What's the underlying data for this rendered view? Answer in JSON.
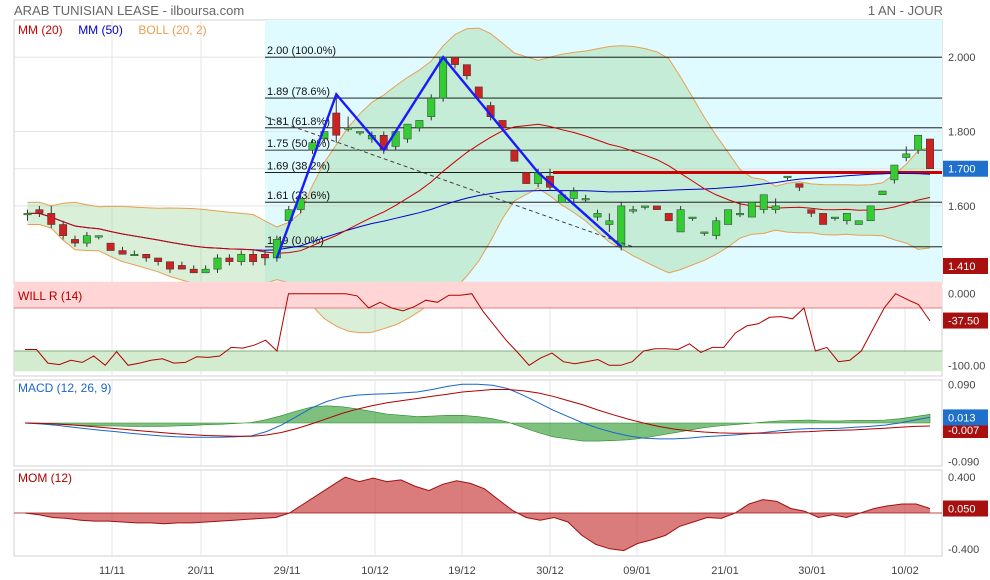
{
  "header": {
    "title": "ARAB TUNISIAN LEASE - ilboursa.com",
    "period": "1 AN - JOUR"
  },
  "colors": {
    "mm20": "#cc0000",
    "mm50": "#0000cc",
    "boll": "#e8a050",
    "up": "#33cc33",
    "down": "#cc2222",
    "fib": "#000000",
    "trend": "#1a1aff",
    "resistance": "#cc0000"
  },
  "chart_data": [
    {
      "type": "candlestick",
      "panel": "price",
      "legend": [
        {
          "label": "MM (20)",
          "color": "#cc0000"
        },
        {
          "label": "MM (50)",
          "color": "#0000cc"
        },
        {
          "label": "BOLL (20, 2)",
          "color": "#e8a050"
        }
      ],
      "y_ticks": [
        1.6,
        1.7,
        1.8,
        2.0
      ],
      "y_tick_labels": [
        "1.600",
        "1.700",
        "1.800",
        "2.000"
      ],
      "ylim": [
        1.39,
        2.1
      ],
      "last_price_label": "1.700",
      "low_label": "1.410",
      "x_ticks": [
        "11/11",
        "20/11",
        "29/11",
        "10/12",
        "19/12",
        "30/12",
        "09/01",
        "21/01",
        "30/01",
        "10/02"
      ],
      "fibonacci": [
        {
          "label": "2.00  (100.0%)",
          "value": 2.0
        },
        {
          "label": "1.89  (78.6%)",
          "value": 1.89
        },
        {
          "label": "1.81  (61.8%)",
          "value": 1.81
        },
        {
          "label": "1.75  (50.0%)",
          "value": 1.75
        },
        {
          "label": "1.69  (38.2%)",
          "value": 1.69
        },
        {
          "label": "1.61  (23.6%)",
          "value": 1.61
        },
        {
          "label": "1.49  (0.0%)",
          "value": 1.49
        }
      ],
      "resistance": 1.69,
      "candles": [
        [
          1.58,
          1.59,
          1.56,
          1.58
        ],
        [
          1.59,
          1.6,
          1.57,
          1.58
        ],
        [
          1.58,
          1.6,
          1.54,
          1.55
        ],
        [
          1.55,
          1.56,
          1.51,
          1.52
        ],
        [
          1.51,
          1.52,
          1.49,
          1.5
        ],
        [
          1.5,
          1.53,
          1.49,
          1.52
        ],
        [
          1.52,
          1.52,
          1.51,
          1.52
        ],
        [
          1.5,
          1.5,
          1.48,
          1.48
        ],
        [
          1.48,
          1.49,
          1.47,
          1.47
        ],
        [
          1.47,
          1.48,
          1.47,
          1.47
        ],
        [
          1.47,
          1.47,
          1.45,
          1.46
        ],
        [
          1.46,
          1.46,
          1.44,
          1.45
        ],
        [
          1.45,
          1.45,
          1.42,
          1.43
        ],
        [
          1.44,
          1.45,
          1.43,
          1.43
        ],
        [
          1.43,
          1.44,
          1.42,
          1.42
        ],
        [
          1.42,
          1.44,
          1.42,
          1.43
        ],
        [
          1.43,
          1.47,
          1.42,
          1.46
        ],
        [
          1.46,
          1.47,
          1.44,
          1.45
        ],
        [
          1.45,
          1.48,
          1.44,
          1.47
        ],
        [
          1.47,
          1.48,
          1.44,
          1.45
        ],
        [
          1.47,
          1.48,
          1.44,
          1.46
        ],
        [
          1.46,
          1.52,
          1.45,
          1.51
        ],
        [
          1.56,
          1.6,
          1.55,
          1.59
        ],
        [
          1.59,
          1.63,
          1.58,
          1.62
        ],
        [
          1.75,
          1.78,
          1.74,
          1.77
        ],
        [
          1.78,
          1.8,
          1.77,
          1.8
        ],
        [
          1.85,
          1.9,
          1.77,
          1.79
        ],
        [
          1.81,
          1.84,
          1.8,
          1.81
        ],
        [
          1.8,
          1.8,
          1.79,
          1.8
        ],
        [
          1.78,
          1.8,
          1.77,
          1.79
        ],
        [
          1.79,
          1.8,
          1.74,
          1.75
        ],
        [
          1.76,
          1.8,
          1.75,
          1.8
        ],
        [
          1.78,
          1.82,
          1.77,
          1.82
        ],
        [
          1.81,
          1.83,
          1.8,
          1.83
        ],
        [
          1.84,
          1.9,
          1.83,
          1.89
        ],
        [
          1.89,
          2.0,
          1.88,
          2.0
        ],
        [
          2.0,
          2.0,
          1.97,
          1.98
        ],
        [
          1.98,
          1.98,
          1.94,
          1.95
        ],
        [
          1.92,
          1.92,
          1.89,
          1.89
        ],
        [
          1.87,
          1.88,
          1.83,
          1.84
        ],
        [
          1.83,
          1.83,
          1.8,
          1.81
        ],
        [
          1.75,
          1.75,
          1.72,
          1.72
        ],
        [
          1.69,
          1.69,
          1.66,
          1.66
        ],
        [
          1.66,
          1.7,
          1.65,
          1.69
        ],
        [
          1.68,
          1.7,
          1.64,
          1.65
        ],
        [
          1.61,
          1.64,
          1.61,
          1.63
        ],
        [
          1.62,
          1.65,
          1.61,
          1.64
        ],
        [
          1.62,
          1.63,
          1.61,
          1.62
        ],
        [
          1.57,
          1.59,
          1.56,
          1.58
        ],
        [
          1.55,
          1.58,
          1.53,
          1.56
        ],
        [
          1.49,
          1.61,
          1.48,
          1.6
        ],
        [
          1.59,
          1.6,
          1.58,
          1.59
        ],
        [
          1.6,
          1.6,
          1.59,
          1.6
        ],
        [
          1.6,
          1.6,
          1.59,
          1.59
        ],
        [
          1.58,
          1.58,
          1.56,
          1.56
        ],
        [
          1.53,
          1.6,
          1.53,
          1.59
        ],
        [
          1.57,
          1.57,
          1.56,
          1.57
        ],
        [
          1.53,
          1.53,
          1.52,
          1.53
        ],
        [
          1.52,
          1.57,
          1.51,
          1.56
        ],
        [
          1.55,
          1.59,
          1.55,
          1.59
        ],
        [
          1.58,
          1.61,
          1.57,
          1.58
        ],
        [
          1.57,
          1.61,
          1.57,
          1.61
        ],
        [
          1.59,
          1.63,
          1.58,
          1.63
        ],
        [
          1.59,
          1.62,
          1.58,
          1.6
        ],
        [
          1.68,
          1.68,
          1.67,
          1.68
        ],
        [
          1.66,
          1.66,
          1.64,
          1.65
        ],
        [
          1.59,
          1.59,
          1.57,
          1.58
        ],
        [
          1.58,
          1.58,
          1.55,
          1.55
        ],
        [
          1.57,
          1.57,
          1.56,
          1.57
        ],
        [
          1.56,
          1.58,
          1.55,
          1.58
        ],
        [
          1.55,
          1.56,
          1.55,
          1.56
        ],
        [
          1.56,
          1.6,
          1.56,
          1.6
        ],
        [
          1.63,
          1.64,
          1.63,
          1.64
        ],
        [
          1.67,
          1.71,
          1.66,
          1.71
        ],
        [
          1.73,
          1.76,
          1.72,
          1.74
        ],
        [
          1.75,
          1.79,
          1.74,
          1.79
        ],
        [
          1.78,
          1.78,
          1.7,
          1.7
        ]
      ]
    },
    {
      "type": "line",
      "panel": "williams",
      "legend": [
        {
          "label": "WILL R (14)",
          "color": "#cc0000"
        }
      ],
      "y_tick_labels": [
        "0.000",
        "-100.00"
      ],
      "ylim": [
        -100,
        0
      ],
      "last_label": "-37.50",
      "values": [
        -78,
        -78,
        -97,
        -99,
        -93,
        -96,
        -87,
        -100,
        -81,
        -100,
        -97,
        -93,
        -91,
        -97,
        -96,
        -88,
        -89,
        -87,
        -75,
        -76,
        -72,
        -65,
        -80,
        0,
        0,
        0,
        0,
        0,
        0,
        -3,
        -20,
        -12,
        -20,
        -24,
        -18,
        -9,
        -12,
        -2,
        -2,
        0,
        -25,
        -45,
        -65,
        -82,
        -100,
        -90,
        -83,
        -95,
        -98,
        -95,
        -92,
        -100,
        -100,
        -95,
        -80,
        -77,
        -77,
        -78,
        -70,
        -82,
        -75,
        -75,
        -55,
        -45,
        -42,
        -33,
        -32,
        -35,
        -20,
        -80,
        -75,
        -95,
        -93,
        -80,
        -50,
        -20,
        0,
        -8,
        -15,
        -38
      ]
    },
    {
      "type": "line",
      "panel": "macd",
      "legend": [
        {
          "label": "MACD (12, 26, 9)",
          "color": "#1a66cc"
        }
      ],
      "y_tick_labels": [
        "0.090",
        "-0.090"
      ],
      "ylim": [
        -0.09,
        0.09
      ],
      "last_label": "0.013",
      "signal_label": "-0.007",
      "macd": [
        -0.0,
        -0.002,
        -0.005,
        -0.009,
        -0.013,
        -0.017,
        -0.02,
        -0.024,
        -0.027,
        -0.03,
        -0.032,
        -0.033,
        -0.033,
        -0.033,
        -0.032,
        -0.03,
        -0.02,
        -0.005,
        0.015,
        0.035,
        0.05,
        0.06,
        0.065,
        0.067,
        0.068,
        0.07,
        0.072,
        0.078,
        0.085,
        0.09,
        0.09,
        0.088,
        0.08,
        0.065,
        0.048,
        0.03,
        0.015,
        0.0,
        -0.012,
        -0.022,
        -0.03,
        -0.035,
        -0.037,
        -0.037,
        -0.035,
        -0.032,
        -0.03,
        -0.028,
        -0.025,
        -0.022,
        -0.018,
        -0.015,
        -0.013,
        -0.013,
        -0.012,
        -0.01,
        -0.008,
        -0.005,
        0.0,
        0.007,
        0.013
      ],
      "signal": [
        0.0,
        -0.001,
        -0.002,
        -0.004,
        -0.007,
        -0.01,
        -0.013,
        -0.016,
        -0.019,
        -0.022,
        -0.025,
        -0.027,
        -0.029,
        -0.03,
        -0.031,
        -0.031,
        -0.028,
        -0.022,
        -0.013,
        -0.002,
        0.01,
        0.022,
        0.032,
        0.04,
        0.047,
        0.052,
        0.057,
        0.062,
        0.067,
        0.072,
        0.075,
        0.078,
        0.078,
        0.075,
        0.07,
        0.062,
        0.052,
        0.042,
        0.03,
        0.019,
        0.009,
        0.0,
        -0.008,
        -0.014,
        -0.018,
        -0.021,
        -0.023,
        -0.024,
        -0.024,
        -0.024,
        -0.023,
        -0.021,
        -0.02,
        -0.018,
        -0.017,
        -0.016,
        -0.014,
        -0.012,
        -0.01,
        -0.008,
        -0.007
      ]
    },
    {
      "type": "area",
      "panel": "momentum",
      "legend": [
        {
          "label": "MOM (12)",
          "color": "#cc3333"
        }
      ],
      "y_tick_labels": [
        "0.400",
        "-0.400"
      ],
      "ylim": [
        -0.4,
        0.4
      ],
      "last_label": "0.050",
      "values": [
        0.0,
        -0.02,
        -0.05,
        -0.06,
        -0.08,
        -0.09,
        -0.09,
        -0.1,
        -0.11,
        -0.11,
        -0.12,
        -0.11,
        -0.11,
        -0.1,
        -0.09,
        -0.08,
        -0.07,
        -0.06,
        -0.05,
        0.0,
        0.1,
        0.2,
        0.3,
        0.4,
        0.35,
        0.39,
        0.35,
        0.37,
        0.3,
        0.25,
        0.32,
        0.36,
        0.33,
        0.27,
        0.15,
        0.03,
        -0.05,
        -0.08,
        -0.05,
        -0.1,
        -0.25,
        -0.35,
        -0.4,
        -0.42,
        -0.34,
        -0.3,
        -0.25,
        -0.15,
        -0.1,
        -0.05,
        -0.06,
        0.0,
        0.1,
        0.15,
        0.13,
        0.05,
        0.02,
        -0.05,
        -0.02,
        -0.05,
        0.0,
        0.05,
        0.08,
        0.1,
        0.1,
        0.05
      ]
    }
  ]
}
